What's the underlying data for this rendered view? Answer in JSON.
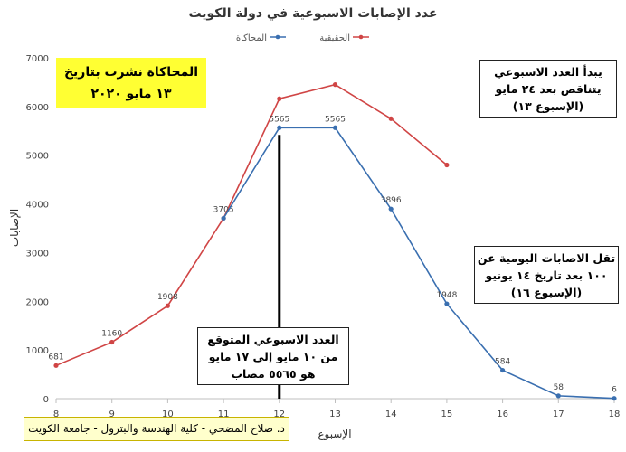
{
  "chart_data": {
    "type": "line",
    "title": "عدد الإصابات الاسبوعية في دولة الكويت",
    "xlabel": "الإسبوع",
    "ylabel": "الإصابات",
    "x": [
      8,
      9,
      10,
      11,
      12,
      13,
      14,
      15,
      16,
      17,
      18
    ],
    "xlim": [
      8,
      18
    ],
    "ylim": [
      0,
      7000
    ],
    "yticks": [
      0,
      1000,
      2000,
      3000,
      4000,
      5000,
      6000,
      7000
    ],
    "grid": false,
    "legend": "top-center",
    "series": [
      {
        "name": "الحقيقية",
        "color": "#d04545",
        "x": [
          8,
          9,
          10,
          11,
          12,
          13,
          14,
          15
        ],
        "values": [
          681,
          1160,
          1908,
          3705,
          6160,
          6450,
          5750,
          4800
        ],
        "labels": [
          "681",
          "1160",
          "1908",
          "3705",
          "",
          "",
          "",
          ""
        ]
      },
      {
        "name": "المحاكاة",
        "color": "#3a6fb0",
        "x": [
          11,
          12,
          13,
          14,
          15,
          16,
          17,
          18
        ],
        "values": [
          3705,
          5565,
          5565,
          3896,
          1948,
          584,
          58,
          6
        ],
        "labels": [
          "",
          "5565",
          "5565",
          "3896",
          "1948",
          "584",
          "58",
          "6"
        ]
      }
    ],
    "marker_line": {
      "x": 12,
      "color": "#000000"
    },
    "annotations": {
      "published": [
        "المحاكاة نشرت بتاريخ",
        "١٣ مايو ٢٠٢٠"
      ],
      "decline": [
        "يبدأ العدد الاسبوعي",
        "يتناقص بعد ٢٤ مايو",
        "(الإسبوع ١٣)"
      ],
      "daily": [
        "تقل الاصابات اليومية عن",
        "١٠٠ بعد تاريخ ١٤ يونيو",
        "(الإسبوع ١٦)"
      ],
      "expected": [
        "العدد الاسبوعي المتوقع",
        "من ١٠ مايو إلى ١٧ مايو",
        "هو ٥٥٦٥ مصاب"
      ]
    }
  },
  "footer": {
    "credit": "د. صلاح المضحي - كلية الهندسة والبترول - جامعة الكويت"
  }
}
